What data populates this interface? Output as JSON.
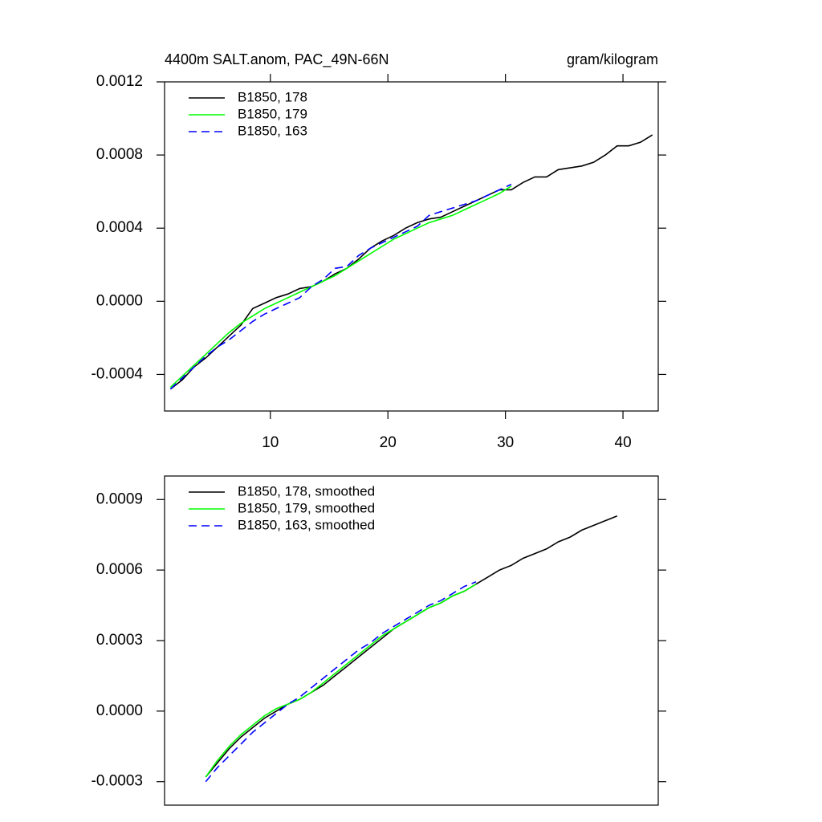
{
  "chart_data": [
    {
      "type": "line",
      "title": "4400m SALT.anom, PAC_49N-66N",
      "right_title": "gram/kilogram",
      "xlim": [
        1,
        43
      ],
      "xticks": [
        10,
        20,
        30,
        40
      ],
      "ylim": [
        -0.0006,
        0.0012
      ],
      "yticks": [
        {
          "value": 0.0012,
          "label": "0.0012"
        },
        {
          "value": 0.0008,
          "label": "0.0008"
        },
        {
          "value": 0.0004,
          "label": "0.0004"
        },
        {
          "value": 0,
          "label": "0.0000"
        },
        {
          "value": -0.0004,
          "label": "-0.0004"
        }
      ],
      "legend": "top-left",
      "series": [
        {
          "name": "B1850, 178",
          "color": "#000000",
          "dash": false,
          "x": [
            1.5,
            2.5,
            3.5,
            4.5,
            5.5,
            6.5,
            7.5,
            8.5,
            9.5,
            10.5,
            11.5,
            12.5,
            13.5,
            14.5,
            15.5,
            16.5,
            17.5,
            18.5,
            19.5,
            20.5,
            21.5,
            22.5,
            23.5,
            24.5,
            25.5,
            26.5,
            27.5,
            28.5,
            29.5,
            30.5,
            31.5,
            32.5,
            33.5,
            34.5,
            35.5,
            36.5,
            37.5,
            38.5,
            39.5,
            40.5,
            41.5,
            42.5
          ],
          "values": [
            -0.00048,
            -0.00043,
            -0.00036,
            -0.00031,
            -0.00025,
            -0.00019,
            -0.00013,
            -4e-05,
            -1e-05,
            2e-05,
            4e-05,
            7e-05,
            8e-05,
            0.00011,
            0.00015,
            0.00018,
            0.00023,
            0.00029,
            0.00033,
            0.00036,
            0.0004,
            0.00043,
            0.00045,
            0.00046,
            0.00049,
            0.00052,
            0.00055,
            0.00058,
            0.00061,
            0.00061,
            0.00065,
            0.00068,
            0.00068,
            0.00072,
            0.00073,
            0.00074,
            0.00076,
            0.0008,
            0.00085,
            0.00085,
            0.00087,
            0.00091
          ]
        },
        {
          "name": "B1850, 179",
          "color": "#00ff00",
          "dash": false,
          "x": [
            1.5,
            2.5,
            3.5,
            4.5,
            5.5,
            6.5,
            7.5,
            8.5,
            9.5,
            10.5,
            11.5,
            12.5,
            13.5,
            14.5,
            15.5,
            16.5,
            17.5,
            18.5,
            19.5,
            20.5,
            21.5,
            22.5,
            23.5,
            24.5,
            25.5,
            26.5,
            27.5,
            28.5,
            29.5,
            30.5
          ],
          "values": [
            -0.00047,
            -0.00041,
            -0.00035,
            -0.00029,
            -0.00023,
            -0.00017,
            -0.00012,
            -8e-05,
            -4e-05,
            -1e-05,
            2e-05,
            5e-05,
            8e-05,
            0.00011,
            0.00014,
            0.00018,
            0.00022,
            0.00026,
            0.0003,
            0.00034,
            0.00037,
            0.0004,
            0.00043,
            0.00045,
            0.00047,
            0.0005,
            0.00053,
            0.00056,
            0.00059,
            0.00063
          ]
        },
        {
          "name": "B1850, 163",
          "color": "#0000ff",
          "dash": true,
          "x": [
            1.5,
            2.5,
            3.5,
            4.5,
            5.5,
            6.5,
            7.5,
            8.5,
            9.5,
            10.5,
            11.5,
            12.5,
            13.5,
            14.5,
            15.5,
            16.5,
            17.5,
            18.5,
            19.5,
            20.5,
            21.5,
            22.5,
            23.5,
            24.5,
            25.5,
            26.5,
            27.5,
            28.5,
            29.5,
            30.5
          ],
          "values": [
            -0.00048,
            -0.00042,
            -0.00036,
            -0.0003,
            -0.00025,
            -0.00021,
            -0.00016,
            -0.00011,
            -7e-05,
            -4e-05,
            -1e-05,
            2e-05,
            8e-05,
            0.00012,
            0.00018,
            0.00019,
            0.00025,
            0.00029,
            0.00032,
            0.00035,
            0.00038,
            0.00041,
            0.00047,
            0.00049,
            0.00051,
            0.00053,
            0.00055,
            0.00058,
            0.00061,
            0.00064
          ]
        }
      ]
    },
    {
      "type": "line",
      "xlim": [
        1,
        43
      ],
      "ylim": [
        -0.0004,
        0.001
      ],
      "yticks": [
        {
          "value": 0.0009,
          "label": "0.0009"
        },
        {
          "value": 0.0006,
          "label": "0.0006"
        },
        {
          "value": 0.0003,
          "label": "0.0003"
        },
        {
          "value": 0,
          "label": "0.0000"
        },
        {
          "value": -0.0003,
          "label": "-0.0003"
        }
      ],
      "legend": "top-left",
      "series": [
        {
          "name": "B1850, 178, smoothed",
          "color": "#000000",
          "dash": false,
          "x": [
            4.5,
            5.5,
            6.5,
            7.5,
            8.5,
            9.5,
            10.5,
            11.5,
            12.5,
            13.5,
            14.5,
            15.5,
            16.5,
            17.5,
            18.5,
            19.5,
            20.5,
            21.5,
            22.5,
            23.5,
            24.5,
            25.5,
            26.5,
            27.5,
            28.5,
            29.5,
            30.5,
            31.5,
            32.5,
            33.5,
            34.5,
            35.5,
            36.5,
            37.5,
            38.5,
            39.5
          ],
          "values": [
            -0.00028,
            -0.00022,
            -0.00016,
            -0.00011,
            -7e-05,
            -3e-05,
            0,
            3e-05,
            5e-05,
            8e-05,
            0.00011,
            0.00015,
            0.00019,
            0.00023,
            0.00027,
            0.00031,
            0.00035,
            0.00038,
            0.00041,
            0.00044,
            0.00046,
            0.00049,
            0.00051,
            0.00054,
            0.00057,
            0.0006,
            0.00062,
            0.00065,
            0.00067,
            0.00069,
            0.00072,
            0.00074,
            0.00077,
            0.00079,
            0.00081,
            0.00083
          ]
        },
        {
          "name": "B1850, 179, smoothed",
          "color": "#00ff00",
          "dash": false,
          "x": [
            4.5,
            5.5,
            6.5,
            7.5,
            8.5,
            9.5,
            10.5,
            11.5,
            12.5,
            13.5,
            14.5,
            15.5,
            16.5,
            17.5,
            18.5,
            19.5,
            20.5,
            21.5,
            22.5,
            23.5,
            24.5,
            25.5,
            26.5,
            27.5
          ],
          "values": [
            -0.00028,
            -0.00021,
            -0.00015,
            -0.0001,
            -6e-05,
            -2e-05,
            1e-05,
            3e-05,
            5e-05,
            8e-05,
            0.00012,
            0.00016,
            0.0002,
            0.00024,
            0.00028,
            0.00032,
            0.00035,
            0.00038,
            0.00041,
            0.00044,
            0.00046,
            0.00049,
            0.00051,
            0.00054
          ]
        },
        {
          "name": "B1850, 163, smoothed",
          "color": "#0000ff",
          "dash": true,
          "x": [
            4.5,
            5.5,
            6.5,
            7.5,
            8.5,
            9.5,
            10.5,
            11.5,
            12.5,
            13.5,
            14.5,
            15.5,
            16.5,
            17.5,
            18.5,
            19.5,
            20.5,
            21.5,
            22.5,
            23.5,
            24.5,
            25.5,
            26.5,
            27.5
          ],
          "values": [
            -0.0003,
            -0.00024,
            -0.00019,
            -0.00014,
            -9e-05,
            -5e-05,
            -1e-05,
            3e-05,
            6e-05,
            0.0001,
            0.00014,
            0.00018,
            0.00022,
            0.00026,
            0.00029,
            0.00033,
            0.00036,
            0.00039,
            0.00042,
            0.00045,
            0.00047,
            0.0005,
            0.00053,
            0.00055
          ]
        }
      ]
    }
  ]
}
